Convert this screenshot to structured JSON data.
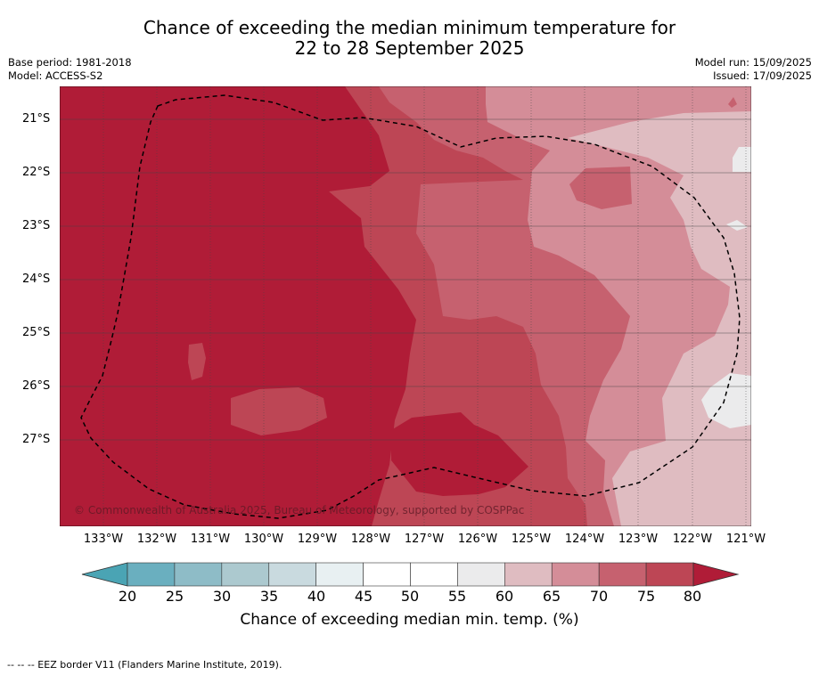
{
  "title": {
    "line1": "Chance of exceeding the median minimum temperature for",
    "line2": "22 to 28 September 2025"
  },
  "meta": {
    "base_period": "Base period: 1981-2018",
    "model": "Model: ACCESS-S2",
    "model_run": "Model run: 15/09/2025",
    "issued": "Issued: 17/09/2025"
  },
  "map": {
    "copyright": "© Commonwealth of Australia 2025, Bureau of Meteorology, supported by COSPPac",
    "lat_labels": [
      "21°S",
      "22°S",
      "23°S",
      "24°S",
      "25°S",
      "26°S",
      "27°S"
    ],
    "lon_labels": [
      "133°W",
      "132°W",
      "131°W",
      "130°W",
      "129°W",
      "128°W",
      "127°W",
      "126°W",
      "125°W",
      "124°W",
      "123°W",
      "122°W",
      "121°W"
    ],
    "extent": {
      "lon_west": -133.85,
      "lon_east": -120.93,
      "lat_north": -20.6,
      "lat_south": -28.8
    }
  },
  "colorbar": {
    "title": "Chance of exceeding median min. temp. (%)",
    "ticks": [
      "20",
      "25",
      "30",
      "35",
      "40",
      "45",
      "50",
      "55",
      "60",
      "65",
      "70",
      "75",
      "80"
    ],
    "colors": [
      "#6aafbf",
      "#8ebcc7",
      "#acc9cf",
      "#c9dadf",
      "#e8f0f2",
      "#ffffff",
      "#ffffff",
      "#ebebec",
      "#dfbcc1",
      "#d48d98",
      "#c6616f",
      "#bd4655"
    ],
    "under_color": "#4aa4b4",
    "over_color": "#b01c37"
  },
  "footer": {
    "legend": "-- -- -- EEZ border V11 (Flanders Marine Institute, 2019)."
  }
}
